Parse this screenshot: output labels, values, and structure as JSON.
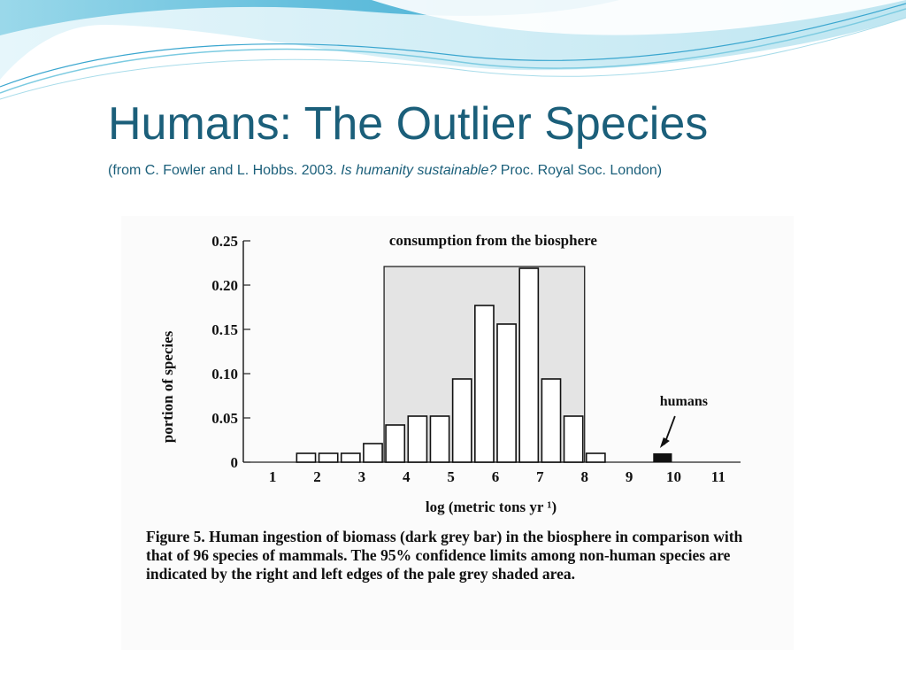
{
  "slide": {
    "title": "Humans: The Outlier Species",
    "subtitle_pre": "(from C. Fowler and L. Hobbs. 2003. ",
    "subtitle_italic": "Is humanity sustainable?",
    "subtitle_post": " Proc. Royal Soc. London)"
  },
  "colors": {
    "title": "#1b5f7a",
    "wave_dark": "#4fb6d8",
    "wave_light": "#bfe6f1",
    "humans_bar": "#111111",
    "confidence_shade": "#e4e4e4"
  },
  "figure": {
    "caption": "Figure 5. Human ingestion of biomass (dark grey bar) in the biosphere in comparison with that of 96 species of mammals. The 95% confidence limits among non-human species are indicated by the right and left edges of the pale grey shaded area."
  },
  "chart_data": {
    "type": "bar",
    "title": "consumption from the biosphere",
    "xlabel": "log (metric tons yr ¹)",
    "ylabel": "portion of species",
    "xlim": [
      0.5,
      11.5
    ],
    "ylim": [
      0,
      0.25
    ],
    "x_ticks": [
      "1",
      "2",
      "3",
      "4",
      "5",
      "6",
      "7",
      "8",
      "9",
      "10",
      "11"
    ],
    "y_ticks": [
      "0",
      "0.05",
      "0.10",
      "0.15",
      "0.20",
      "0.25"
    ],
    "bin_width": 0.5,
    "series": [
      {
        "bars": [
          {
            "x": 1.75,
            "value": 0.01
          },
          {
            "x": 2.25,
            "value": 0.01
          },
          {
            "x": 2.75,
            "value": 0.01
          },
          {
            "x": 3.25,
            "value": 0.021
          },
          {
            "x": 3.75,
            "value": 0.042
          },
          {
            "x": 4.25,
            "value": 0.052
          },
          {
            "x": 4.75,
            "value": 0.052
          },
          {
            "x": 5.25,
            "value": 0.094
          },
          {
            "x": 5.75,
            "value": 0.177
          },
          {
            "x": 6.25,
            "value": 0.156
          },
          {
            "x": 6.75,
            "value": 0.219
          },
          {
            "x": 7.25,
            "value": 0.094
          },
          {
            "x": 7.75,
            "value": 0.052
          },
          {
            "x": 8.25,
            "value": 0.01
          }
        ]
      }
    ],
    "humans": {
      "label": "humans",
      "x": 9.75,
      "value": 0.01
    },
    "confidence_limits": [
      3.5,
      8.0
    ]
  }
}
